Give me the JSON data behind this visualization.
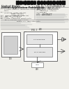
{
  "bg_color": "#f0efea",
  "barcode_color": "#111111",
  "text_color": "#2a2a2a",
  "text_color_light": "#555555",
  "line_color": "#888888",
  "box_edge": "#555555",
  "box_fill": "#ffffff",
  "inner_fill": "#e8e8e8",
  "diagram_line": "#444444",
  "title_line1": "United States",
  "title_line2": "Patent Application Publication",
  "header_right1": "Pub. No.: US 2012/0098590 A1",
  "header_right2": "Pub. Date:   Apr. 26, 2012",
  "fig_label": "FIG. 1"
}
